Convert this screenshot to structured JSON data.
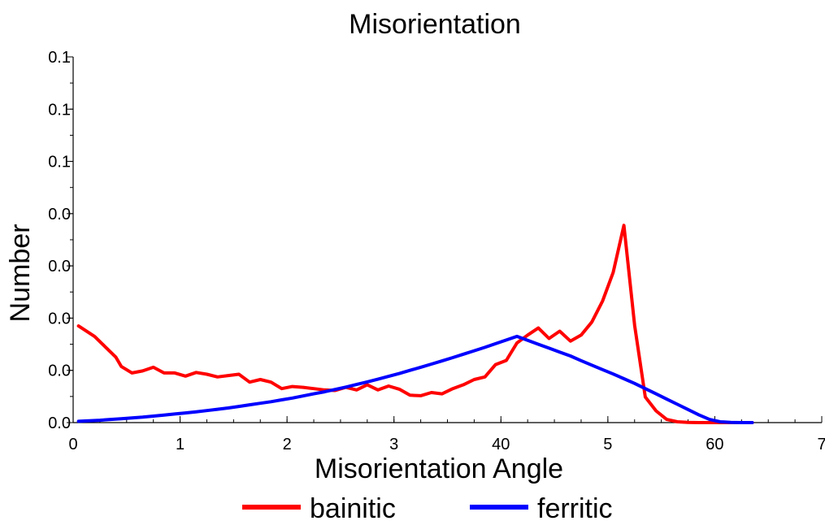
{
  "chart_data": {
    "type": "line",
    "title": "Misorientation",
    "xlabel": "Misorientation Angle",
    "ylabel": "Number",
    "xlim": [
      0,
      70
    ],
    "ylim": [
      0,
      0.14
    ],
    "x_ticks": [
      {
        "value": 0,
        "label": "0"
      },
      {
        "value": 10,
        "label": "1"
      },
      {
        "value": 20,
        "label": "2"
      },
      {
        "value": 30,
        "label": "3"
      },
      {
        "value": 40,
        "label": "40"
      },
      {
        "value": 50,
        "label": "5"
      },
      {
        "value": 60,
        "label": "60"
      },
      {
        "value": 70,
        "label": "7"
      }
    ],
    "y_ticks": [
      {
        "value": 0,
        "label": "0.0"
      },
      {
        "value": 0.02,
        "label": "0.0"
      },
      {
        "value": 0.04,
        "label": "0.0"
      },
      {
        "value": 0.06,
        "label": "0.0"
      },
      {
        "value": 0.08,
        "label": "0.0"
      },
      {
        "value": 0.1,
        "label": "0.1"
      },
      {
        "value": 0.12,
        "label": "0.1"
      },
      {
        "value": 0.14,
        "label": "0.1"
      }
    ],
    "x_minor_step": 2.5,
    "y_minor_step": 0.01,
    "grid": false,
    "legend_position": "bottom",
    "series": [
      {
        "name": "bainitic",
        "color": "#ff0000",
        "x": [
          0.5,
          1.5,
          2.5,
          3.5,
          4.5,
          5.5,
          6.5,
          7.5,
          8.5,
          9.5,
          10.5,
          11.5,
          12.5,
          13.5,
          14.5,
          15.5,
          16.5,
          17.5,
          18.5,
          19.5,
          20.5,
          21.5,
          22.5,
          23.5,
          24.5,
          25.5,
          26.5,
          27.5,
          28.5,
          29.5,
          30.5,
          31.5,
          32.5,
          33.5,
          34.5,
          35.5,
          36.5,
          37.5,
          38.5,
          39.5,
          40.5,
          41.5,
          42.5,
          43.5,
          44.5,
          45.5,
          46.5,
          47.5,
          48.5,
          49.5,
          50.5,
          51.5,
          52.5,
          53.5,
          54.5,
          55.5,
          56.5,
          57.5,
          58.5,
          59.5,
          60.5,
          61.5,
          62.5,
          63.5
        ],
        "y": [
          0.037,
          0.033,
          0.029,
          0.025,
          0.0215,
          0.019,
          0.0198,
          0.0212,
          0.019,
          0.019,
          0.0178,
          0.0192,
          0.0185,
          0.0175,
          0.018,
          0.0185,
          0.0155,
          0.0165,
          0.0155,
          0.013,
          0.0138,
          0.0135,
          0.013,
          0.0125,
          0.0123,
          0.0135,
          0.0125,
          0.0145,
          0.0125,
          0.014,
          0.0128,
          0.0105,
          0.0103,
          0.0115,
          0.011,
          0.013,
          0.0145,
          0.0165,
          0.0175,
          0.0222,
          0.0238,
          0.0305,
          0.0335,
          0.0362,
          0.0322,
          0.035,
          0.0312,
          0.0335,
          0.0385,
          0.0465,
          0.0575,
          0.0755,
          0.0372,
          0.0098,
          0.0045,
          0.0012,
          0.0003,
          0.0001,
          0.0,
          0.0,
          0.0,
          0.0,
          0.0,
          0.0
        ],
        "x_plot": [
          0.5,
          2.0,
          3.0,
          4.0,
          4.5,
          5.5,
          6.5,
          7.5,
          8.5,
          9.5,
          10.5,
          11.5,
          12.5,
          13.5,
          14.5,
          15.5,
          16.5,
          17.5,
          18.5,
          19.5,
          20.5,
          21.5,
          22.5,
          23.5,
          24.5,
          25.5,
          26.5,
          27.5,
          28.5,
          29.5,
          30.5,
          31.5,
          32.5,
          33.5,
          34.5,
          35.5,
          36.5,
          37.5,
          38.5,
          39.5,
          40.5,
          41.5,
          42.5,
          43.5,
          44.5,
          45.5,
          46.5,
          47.5,
          48.5,
          49.5,
          50.5,
          51.5,
          52.5,
          53.5,
          54.5,
          55.5,
          56.5,
          57.5,
          58.5,
          59.5,
          60.5,
          61.5,
          62.5,
          63.5
        ]
      },
      {
        "name": "ferritic",
        "color": "#0000ff",
        "x": [
          0.5,
          1.5,
          2.5,
          3.5,
          4.5,
          5.5,
          6.5,
          7.5,
          8.5,
          9.5,
          10.5,
          11.5,
          12.5,
          13.5,
          14.5,
          15.5,
          16.5,
          17.5,
          18.5,
          19.5,
          20.5,
          21.5,
          22.5,
          23.5,
          24.5,
          25.5,
          26.5,
          27.5,
          28.5,
          29.5,
          30.5,
          31.5,
          32.5,
          33.5,
          34.5,
          35.5,
          36.5,
          37.5,
          38.5,
          39.5,
          40.5,
          41.5,
          42.5,
          43.5,
          44.5,
          45.5,
          46.5,
          47.5,
          48.5,
          49.5,
          50.5,
          51.5,
          52.5,
          53.5,
          54.5,
          55.5,
          56.5,
          57.5,
          58.5,
          59.5,
          60.5,
          61.5,
          62.5,
          63.5
        ],
        "y": [
          0.0005,
          0.0007,
          0.0009,
          0.0012,
          0.0015,
          0.0018,
          0.0021,
          0.0025,
          0.0029,
          0.0033,
          0.0037,
          0.0041,
          0.0046,
          0.0051,
          0.0056,
          0.0062,
          0.0068,
          0.0074,
          0.008,
          0.0087,
          0.0094,
          0.0102,
          0.011,
          0.0118,
          0.0127,
          0.0136,
          0.0146,
          0.0156,
          0.0166,
          0.0177,
          0.0188,
          0.02,
          0.0212,
          0.0224,
          0.0236,
          0.0249,
          0.0262,
          0.0275,
          0.0288,
          0.0302,
          0.0316,
          0.033,
          0.0315,
          0.03,
          0.0285,
          0.027,
          0.0255,
          0.0237,
          0.022,
          0.0203,
          0.0186,
          0.0168,
          0.015,
          0.013,
          0.011,
          0.009,
          0.007,
          0.005,
          0.003,
          0.0012,
          0.0003,
          0.0001,
          0.0,
          0.0
        ]
      }
    ]
  }
}
